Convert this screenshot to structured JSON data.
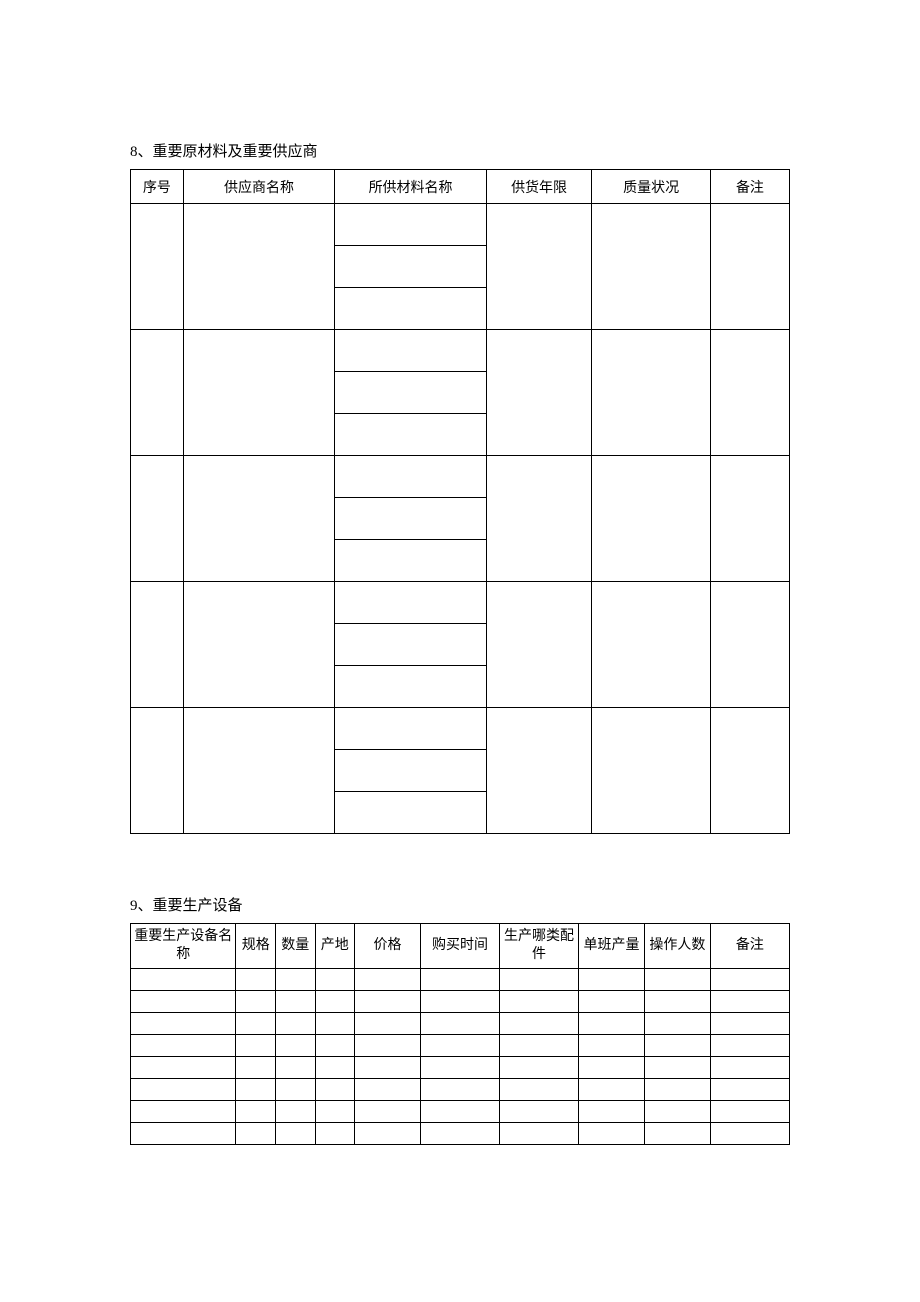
{
  "section8": {
    "title": "8、重要原材料及重要供应商",
    "columns": [
      "序号",
      "供应商名称",
      "所供材料名称",
      "供货年限",
      "质量状况",
      "备注"
    ],
    "col_widths": [
      "8%",
      "23%",
      "23%",
      "16%",
      "18%",
      "12%"
    ],
    "group_count": 5,
    "materials_per_group": 3
  },
  "section9": {
    "title": "9、重要生产设备",
    "columns": [
      "重要生产设备名称",
      "规格",
      "数量",
      "产地",
      "价格",
      "购买时间",
      "生产哪类配件",
      "单班产量",
      "操作人数",
      "备注"
    ],
    "col_widths": [
      "16%",
      "6%",
      "6%",
      "6%",
      "10%",
      "12%",
      "12%",
      "10%",
      "10%",
      "12%"
    ],
    "row_count": 8
  },
  "table_border_color": "#000000",
  "background_color": "#ffffff",
  "text_color": "#000000",
  "font_size": 14
}
